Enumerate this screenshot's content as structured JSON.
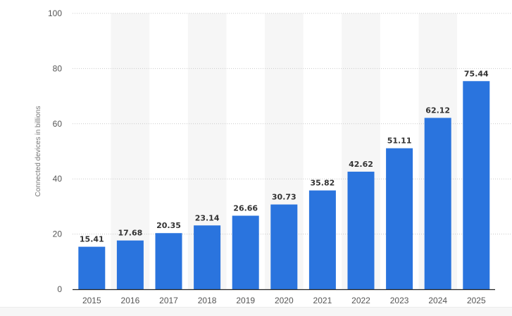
{
  "chart_data": {
    "type": "bar",
    "title": "",
    "xlabel": "",
    "ylabel": "Connected devices in billions",
    "categories": [
      "2015",
      "2016",
      "2017",
      "2018",
      "2019",
      "2020",
      "2021",
      "2022",
      "2023",
      "2024",
      "2025"
    ],
    "values": [
      15.41,
      17.68,
      20.35,
      23.14,
      26.66,
      30.73,
      35.82,
      42.62,
      51.11,
      62.12,
      75.44
    ],
    "value_labels": [
      "15.41",
      "17.68",
      "20.35",
      "23.14",
      "26.66",
      "30.73",
      "35.82",
      "42.62",
      "51.11",
      "62.12",
      "75.44"
    ],
    "ylim": [
      0,
      100
    ],
    "yticks": [
      0,
      20,
      40,
      60,
      80,
      100
    ],
    "grid": true,
    "legend": "none",
    "colors": {
      "bar": "#2a74de",
      "band": "#f6f6f6",
      "grid": "#c8c8c8",
      "axis": "#222222"
    }
  }
}
